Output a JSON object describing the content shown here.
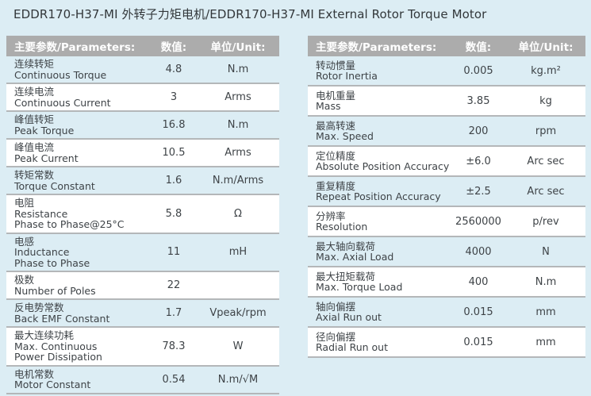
{
  "title": "EDDR170-H37-MI 外转子力矩电机/EDDR170-H37-MI  External Rotor Torque Motor",
  "colors": {
    "page_background": "#dcedf4",
    "header_background": "#acacac",
    "header_text": "#ffffff",
    "row_alt_blue": "#dcedf4",
    "row_white": "#ffffff",
    "row_divider": "#b4b7b9",
    "body_text": "#3e4347"
  },
  "tables": [
    {
      "headers": {
        "param": "主要参数/Parameters:",
        "value": "数值:",
        "unit": "单位/Unit:"
      },
      "rows": [
        {
          "lines": [
            "连续转矩",
            "Continuous Torque"
          ],
          "value": "4.8",
          "unit": "N.m"
        },
        {
          "lines": [
            "连续电流",
            "Continuous Current"
          ],
          "value": "3",
          "unit": "Arms"
        },
        {
          "lines": [
            "峰值转矩",
            "Peak Torque"
          ],
          "value": "16.8",
          "unit": "N.m"
        },
        {
          "lines": [
            "峰值电流",
            "Peak Current"
          ],
          "value": "10.5",
          "unit": "Arms"
        },
        {
          "lines": [
            "转矩常数",
            "Torque Constant"
          ],
          "value": "1.6",
          "unit": "N.m/Arms"
        },
        {
          "lines": [
            "电阻",
            "Resistance",
            "Phase to Phase@25°C"
          ],
          "value": "5.8",
          "unit": "Ω"
        },
        {
          "lines": [
            "电感",
            "Inductance",
            "Phase to Phase"
          ],
          "value": "11",
          "unit": "mH"
        },
        {
          "lines": [
            "极数",
            "Number of Poles"
          ],
          "value": "22",
          "unit": ""
        },
        {
          "lines": [
            "反电势常数",
            "Back EMF Constant"
          ],
          "value": "1.7",
          "unit": "Vpeak/rpm"
        },
        {
          "lines": [
            "最大连续功耗",
            "Max. Continuous",
            "Power Dissipation"
          ],
          "value": "78.3",
          "unit": "W"
        },
        {
          "lines": [
            "电机常数",
            "Motor Constant"
          ],
          "value": "0.54",
          "unit": "N.m/√M"
        }
      ]
    },
    {
      "headers": {
        "param": "主要参数/Parameters:",
        "value": "数值:",
        "unit": "单位/Unit:"
      },
      "rows": [
        {
          "lines": [
            "转动惯量",
            "Rotor Inertia"
          ],
          "value": "0.005",
          "unit": "kg.m²"
        },
        {
          "lines": [
            "电机重量",
            "Mass"
          ],
          "value": "3.85",
          "unit": "kg"
        },
        {
          "lines": [
            "最高转速",
            "Max. Speed"
          ],
          "value": "200",
          "unit": "rpm"
        },
        {
          "lines": [
            "定位精度",
            "Absolute Position Accuracy"
          ],
          "value": "±6.0",
          "unit": "Arc sec"
        },
        {
          "lines": [
            "重复精度",
            "Repeat Position Accuracy"
          ],
          "value": "±2.5",
          "unit": "Arc sec"
        },
        {
          "lines": [
            "分辨率",
            "Resolution"
          ],
          "value": "2560000",
          "unit": "p/rev"
        },
        {
          "lines": [
            "最大轴向载荷",
            "Max. Axial Load"
          ],
          "value": "4000",
          "unit": "N"
        },
        {
          "lines": [
            "最大扭矩载荷",
            "Max. Torque Load"
          ],
          "value": "400",
          "unit": "N.m"
        },
        {
          "lines": [
            "轴向偏摆",
            "Axial Run out"
          ],
          "value": "0.015",
          "unit": "mm"
        },
        {
          "lines": [
            "径向偏摆",
            "Radial Run out"
          ],
          "value": "0.015",
          "unit": "mm"
        }
      ]
    }
  ]
}
